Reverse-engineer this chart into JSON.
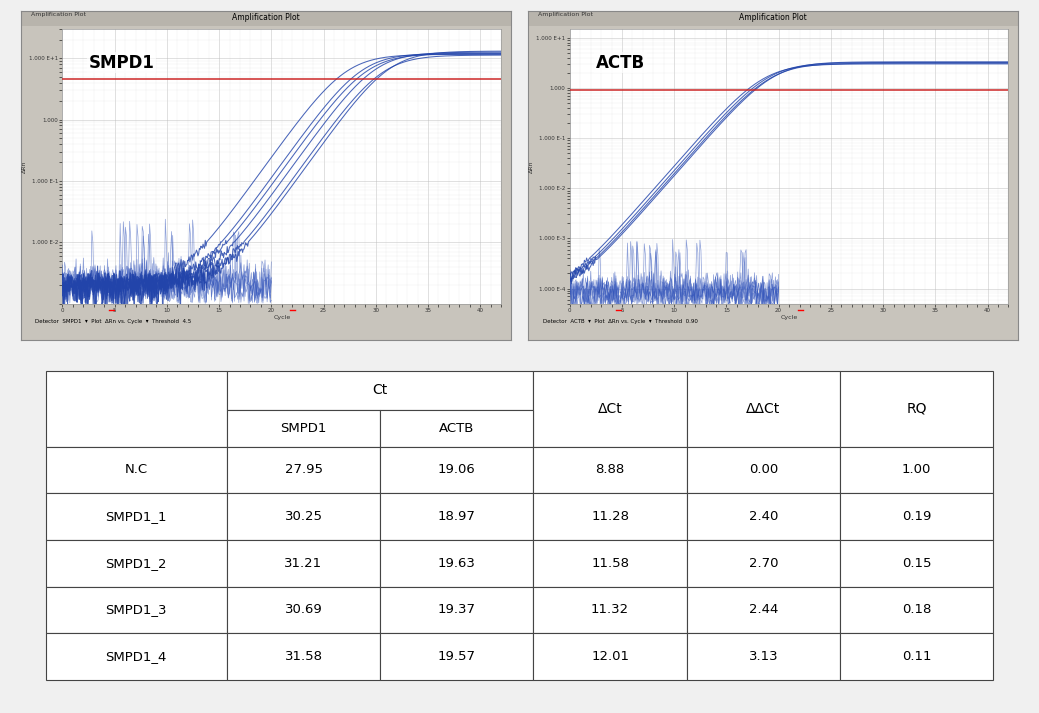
{
  "table_rows": [
    [
      "N.C",
      "27.95",
      "19.06",
      "8.88",
      "0.00",
      "1.00"
    ],
    [
      "SMPD1_1",
      "30.25",
      "18.97",
      "11.28",
      "2.40",
      "0.19"
    ],
    [
      "SMPD1_2",
      "31.21",
      "19.63",
      "11.58",
      "2.70",
      "0.15"
    ],
    [
      "SMPD1_3",
      "30.69",
      "19.37",
      "11.32",
      "2.44",
      "0.18"
    ],
    [
      "SMPD1_4",
      "31.58",
      "19.57",
      "12.01",
      "3.13",
      "0.11"
    ]
  ],
  "background_color": "#f5f5f5",
  "panel_bg": "#c8c4bc",
  "plot_bg": "#ffffff",
  "threshold_color": "#cc2222",
  "grid_color_major": "#bbbbbb",
  "grid_color_minor": "#dddddd",
  "curve_color": "#2244aa",
  "curve_color2": "#6677cc",
  "smpd1_label": "SMPD1",
  "actb_label": "ACTB",
  "smpd1_threshold": 4.5,
  "actb_threshold": 0.9,
  "smpd1_midpoints": [
    27.0,
    28.5,
    29.0,
    29.8,
    30.5,
    31.2
  ],
  "smpd1_highs": [
    11.5,
    12.0,
    11.8,
    12.5,
    11.2,
    13.0
  ],
  "actb_midpoints": [
    18.5,
    19.0,
    19.2,
    19.5
  ],
  "actb_highs": [
    3.0,
    3.2,
    3.1,
    3.3
  ],
  "smpd1_yticks": [
    0.001,
    0.01,
    0.1,
    1.0,
    10.0
  ],
  "smpd1_ytick_labels": [
    "",
    "1.000 E-2",
    "1.000 E-1",
    "1.000",
    "1.000 E+1"
  ],
  "actb_yticks": [
    0.0001,
    0.001,
    0.01,
    0.1,
    1.0,
    10.0
  ],
  "actb_ytick_labels": [
    "1.000 E-4",
    "1.000 E-3",
    "1.000 E-2",
    "1.000 E-1",
    "1.000",
    "1.000 E+1"
  ],
  "xticks": [
    0,
    5,
    10,
    15,
    20,
    25,
    30,
    35,
    40
  ],
  "xtick_labels": [
    "0",
    "5",
    "10",
    "15",
    "20",
    "25",
    "30",
    "35",
    "40"
  ]
}
